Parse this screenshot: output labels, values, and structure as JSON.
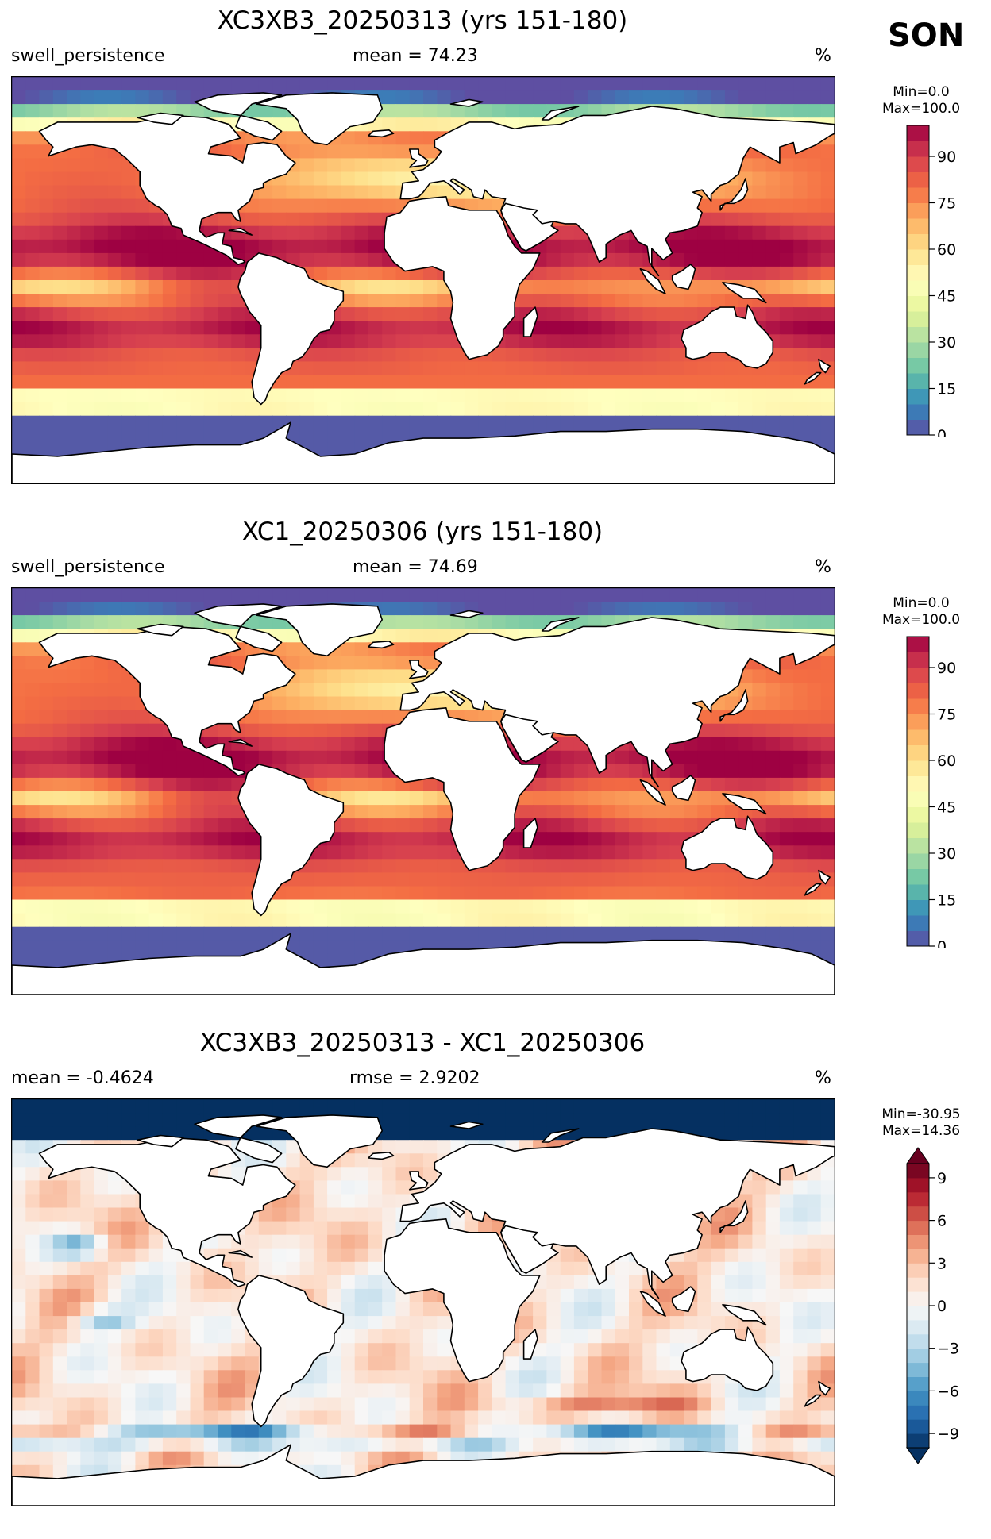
{
  "season": "SON",
  "panels": [
    {
      "title": "XC3XB3_20250313 (yrs 151-180)",
      "left_label": "swell_persistence",
      "center_label": "mean = 74.23",
      "units": "%",
      "colorbar": {
        "min_label": "Min=0.0",
        "max_label": "Max=100.0",
        "ticks": [
          "0",
          "15",
          "30",
          "45",
          "60",
          "75",
          "90"
        ],
        "tick_values": [
          0,
          15,
          30,
          45,
          60,
          75,
          90
        ],
        "range": [
          0,
          100
        ],
        "colormap": "Spectral_r",
        "extend": "neither"
      }
    },
    {
      "title": "XC1_20250306 (yrs 151-180)",
      "left_label": "swell_persistence",
      "center_label": "mean = 74.69",
      "units": "%",
      "colorbar": {
        "min_label": "Min=0.0",
        "max_label": "Max=100.0",
        "ticks": [
          "0",
          "15",
          "30",
          "45",
          "60",
          "75",
          "90"
        ],
        "tick_values": [
          0,
          15,
          30,
          45,
          60,
          75,
          90
        ],
        "range": [
          0,
          100
        ],
        "colormap": "Spectral_r",
        "extend": "neither"
      }
    },
    {
      "title": "XC3XB3_20250313 - XC1_20250306",
      "left_label": "mean = -0.4624",
      "center_label": "rmse = 2.9202",
      "units": "%",
      "colorbar": {
        "min_label": "Min=-30.95",
        "max_label": "Max=14.36",
        "ticks": [
          "−9",
          "−6",
          "−3",
          "0",
          "3",
          "6",
          "9"
        ],
        "tick_values": [
          -9,
          -6,
          -3,
          0,
          3,
          6,
          9
        ],
        "range": [
          -10,
          10
        ],
        "colormap": "RdBu_r",
        "extend": "both"
      }
    }
  ],
  "colors": {
    "spectral_low": "#5e4fa2",
    "spectral_high": "#9e0142",
    "rdbu_low": "#053061",
    "rdbu_high": "#67001f",
    "land": "#ffffff",
    "coast": "#000000"
  }
}
